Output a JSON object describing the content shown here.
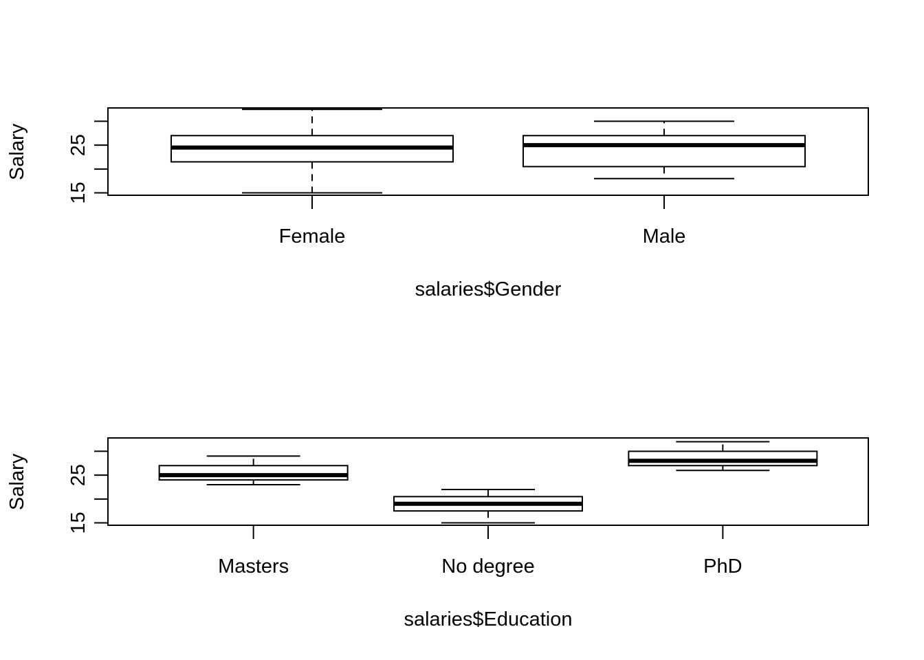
{
  "chart_data": [
    {
      "type": "box",
      "xlabel": "salaries$Gender",
      "ylabel": "Salary",
      "ylim": [
        14.5,
        32.8
      ],
      "yticks": [
        15,
        20,
        25,
        30
      ],
      "ytick_labels": [
        "15",
        "",
        "25",
        ""
      ],
      "grid": false,
      "categories": [
        "Female",
        "Male"
      ],
      "boxes": [
        {
          "category": "Female",
          "whisker_low": 15,
          "q1": 21.5,
          "median": 24.5,
          "q3": 27,
          "whisker_high": 32.5
        },
        {
          "category": "Male",
          "whisker_low": 18,
          "q1": 20.5,
          "median": 25,
          "q3": 27,
          "whisker_high": 30
        }
      ]
    },
    {
      "type": "box",
      "xlabel": "salaries$Education",
      "ylabel": "Salary",
      "ylim": [
        14.5,
        32.8
      ],
      "yticks": [
        15,
        20,
        25,
        30
      ],
      "ytick_labels": [
        "15",
        "",
        "25",
        ""
      ],
      "grid": false,
      "categories": [
        "Masters",
        "No degree",
        "PhD"
      ],
      "boxes": [
        {
          "category": "Masters",
          "whisker_low": 23,
          "q1": 24,
          "median": 25,
          "q3": 27,
          "whisker_high": 29
        },
        {
          "category": "No degree",
          "whisker_low": 15,
          "q1": 17.5,
          "median": 19,
          "q3": 20.5,
          "whisker_high": 22
        },
        {
          "category": "PhD",
          "whisker_low": 26,
          "q1": 27,
          "median": 28,
          "q3": 30,
          "whisker_high": 32
        }
      ]
    }
  ]
}
